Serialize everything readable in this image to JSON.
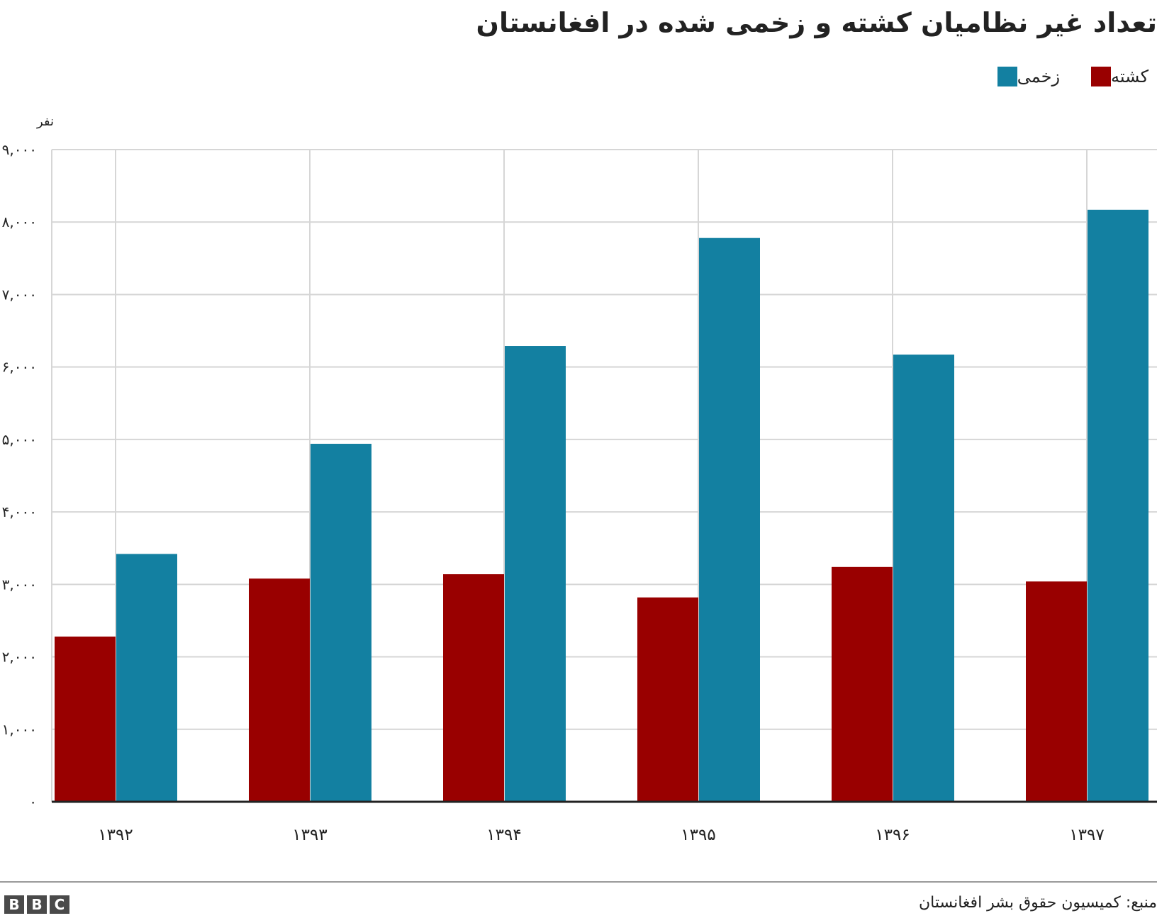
{
  "chart_data": {
    "type": "bar",
    "title": "تعداد غیر نظامیان کشته و زخمی شده در افغانستان",
    "ylabel": "نفر",
    "xlabel": "",
    "categories": [
      "۱۳۹۲",
      "۱۳۹۳",
      "۱۳۹۴",
      "۱۳۹۵",
      "۱۳۹۶",
      "۱۳۹۷"
    ],
    "series": [
      {
        "name": "کشته",
        "color": "#990000",
        "values": [
          2280,
          3080,
          3140,
          2820,
          3240,
          3040
        ]
      },
      {
        "name": "زخمی",
        "color": "#1380a1",
        "values": [
          3420,
          4940,
          6290,
          7780,
          6170,
          8170
        ]
      }
    ],
    "ylim": [
      0,
      9000
    ],
    "yticks": [
      0,
      1000,
      2000,
      3000,
      4000,
      5000,
      6000,
      7000,
      8000,
      9000
    ],
    "ytick_labels": [
      "۰",
      "۱,۰۰۰",
      "۲,۰۰۰",
      "۳,۰۰۰",
      "۴,۰۰۰",
      "۵,۰۰۰",
      "۶,۰۰۰",
      "۷,۰۰۰",
      "۸,۰۰۰",
      "۹,۰۰۰"
    ],
    "grid": true,
    "legend_position": "top-right"
  },
  "footer": {
    "source": "منبع: کمیسیون حقوق بشر افغانستان",
    "logo_letters": [
      "B",
      "B",
      "C"
    ]
  }
}
